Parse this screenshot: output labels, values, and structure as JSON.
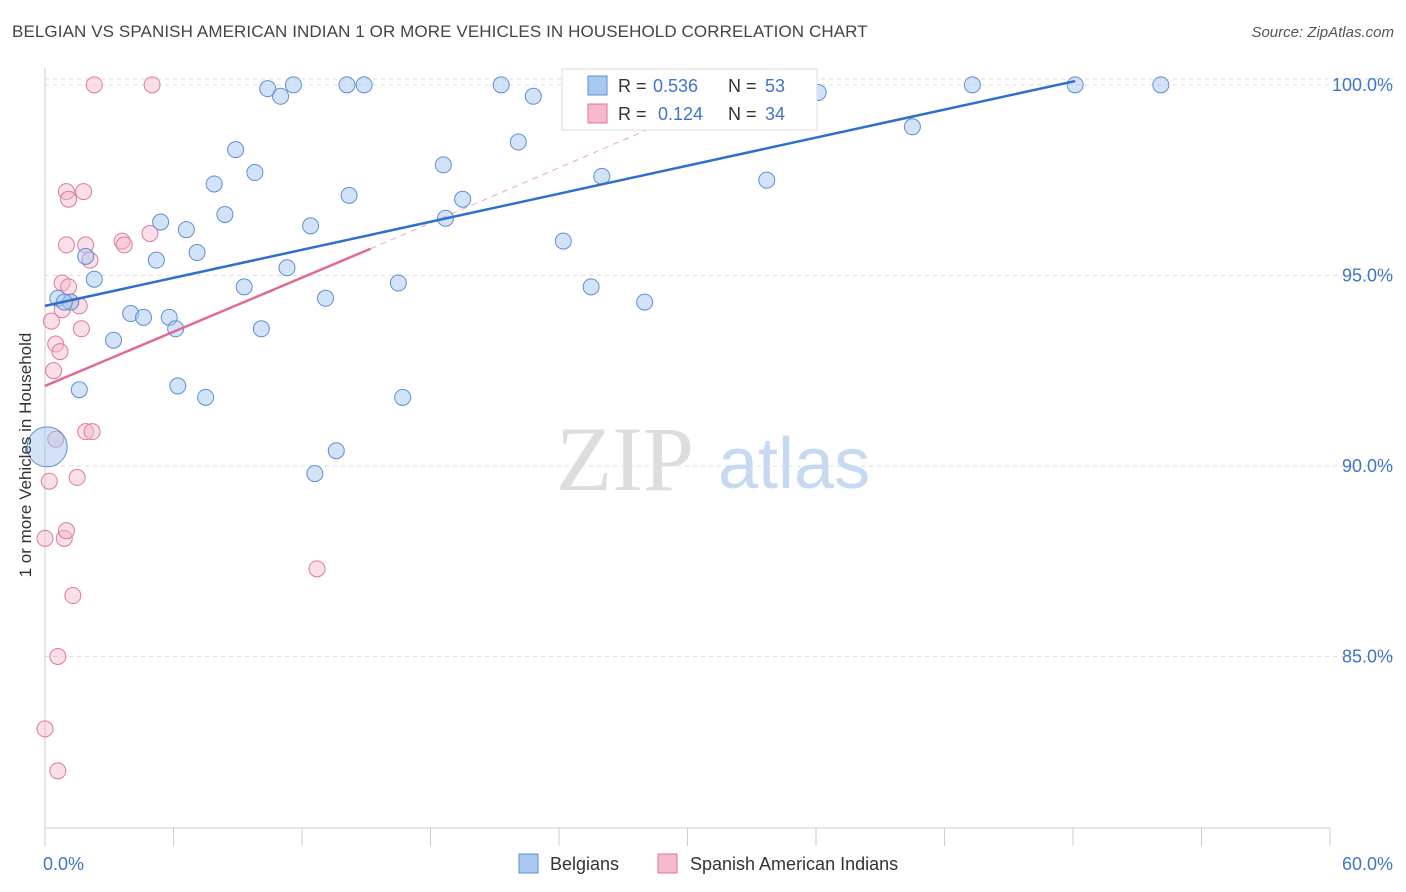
{
  "header": {
    "title": "BELGIAN VS SPANISH AMERICAN INDIAN 1 OR MORE VEHICLES IN HOUSEHOLD CORRELATION CHART",
    "source": "Source: ZipAtlas.com"
  },
  "watermark": {
    "zip": "ZIP",
    "atlas": "atlas"
  },
  "colors": {
    "belgians_fill": "#a8c8ef",
    "belgians_stroke": "#5b8fd4",
    "belgians_line": "#2f6fcc",
    "spanish_fill": "#f5b8cc",
    "spanish_stroke": "#e07899",
    "spanish_line": "#e06a92",
    "tick_label": "#3f75c8",
    "grid": "#dddddd"
  },
  "legend_top": {
    "rows": [
      {
        "r_label": "R =",
        "r_value": "0.536",
        "n_label": "N =",
        "n_value": "53"
      },
      {
        "r_label": "R =",
        "r_value": "0.124",
        "n_label": "N =",
        "n_value": "34"
      }
    ]
  },
  "chart_data": {
    "type": "scatter",
    "title": "BELGIAN VS SPANISH AMERICAN INDIAN 1 OR MORE VEHICLES IN HOUSEHOLD CORRELATION CHART",
    "xlabel": "",
    "ylabel": "1 or more Vehicles in Household",
    "xlim": [
      0,
      60
    ],
    "ylim": [
      80.5,
      100.6
    ],
    "x_tick_labels": [
      "0.0%",
      "60.0%"
    ],
    "y_ticks": [
      85,
      90,
      95,
      100
    ],
    "y_tick_labels": [
      "85.0%",
      "90.0%",
      "95.0%",
      "100.0%"
    ],
    "grid": true,
    "legend_position": "bottom",
    "series": [
      {
        "name": "Belgians",
        "r": 0.536,
        "n": 53,
        "trend": {
          "x": [
            0,
            48.1
          ],
          "y": [
            94.2,
            100.1
          ]
        },
        "points": [
          [
            0.1,
            90.5
          ],
          [
            0.6,
            94.4
          ],
          [
            1.2,
            94.3
          ],
          [
            1.6,
            92.0
          ],
          [
            1.9,
            95.5
          ],
          [
            2.3,
            94.9
          ],
          [
            3.2,
            93.3
          ],
          [
            4.0,
            94.0
          ],
          [
            4.6,
            93.9
          ],
          [
            5.2,
            95.4
          ],
          [
            5.4,
            96.4
          ],
          [
            5.8,
            93.9
          ],
          [
            6.1,
            93.6
          ],
          [
            6.2,
            92.1
          ],
          [
            6.6,
            96.2
          ],
          [
            7.1,
            95.6
          ],
          [
            7.5,
            91.8
          ],
          [
            7.9,
            97.4
          ],
          [
            8.4,
            96.6
          ],
          [
            8.9,
            98.3
          ],
          [
            9.3,
            94.7
          ],
          [
            9.8,
            97.7
          ],
          [
            10.1,
            93.6
          ],
          [
            10.4,
            99.9
          ],
          [
            11.0,
            99.7
          ],
          [
            11.3,
            95.2
          ],
          [
            11.6,
            100.0
          ],
          [
            12.4,
            96.3
          ],
          [
            12.6,
            89.8
          ],
          [
            13.1,
            94.4
          ],
          [
            13.6,
            90.4
          ],
          [
            14.1,
            100.0
          ],
          [
            14.2,
            97.1
          ],
          [
            14.9,
            100.0
          ],
          [
            16.5,
            94.8
          ],
          [
            16.7,
            91.8
          ],
          [
            18.6,
            97.9
          ],
          [
            18.7,
            96.5
          ],
          [
            19.5,
            97.0
          ],
          [
            21.3,
            100.0
          ],
          [
            22.1,
            98.5
          ],
          [
            22.8,
            99.7
          ],
          [
            24.2,
            95.9
          ],
          [
            25.5,
            94.7
          ],
          [
            26.0,
            97.6
          ],
          [
            28.0,
            94.3
          ],
          [
            33.7,
            97.5
          ],
          [
            36.1,
            99.8
          ],
          [
            40.5,
            98.9
          ],
          [
            43.3,
            100.0
          ],
          [
            48.1,
            100.0
          ],
          [
            52.1,
            100.0
          ],
          [
            0.9,
            94.3
          ]
        ]
      },
      {
        "name": "Spanish American Indians",
        "r": 0.124,
        "n": 34,
        "trend": {
          "x": [
            0,
            15.2
          ],
          "y": [
            92.1,
            95.7
          ],
          "dashed_x": [
            15.2,
            33.0
          ],
          "dashed_y": [
            95.7,
            100.0
          ]
        },
        "points": [
          [
            0.0,
            88.1
          ],
          [
            0.0,
            83.1
          ],
          [
            0.2,
            89.6
          ],
          [
            0.3,
            93.8
          ],
          [
            0.4,
            92.5
          ],
          [
            0.5,
            93.2
          ],
          [
            0.5,
            90.7
          ],
          [
            0.6,
            82.0
          ],
          [
            0.6,
            85.0
          ],
          [
            0.7,
            93.0
          ],
          [
            0.8,
            94.1
          ],
          [
            0.8,
            94.8
          ],
          [
            0.9,
            88.1
          ],
          [
            1.0,
            88.3
          ],
          [
            1.0,
            95.8
          ],
          [
            1.0,
            97.2
          ],
          [
            1.1,
            97.0
          ],
          [
            1.1,
            94.7
          ],
          [
            1.2,
            94.3
          ],
          [
            1.3,
            86.6
          ],
          [
            1.5,
            89.7
          ],
          [
            1.6,
            94.2
          ],
          [
            1.7,
            93.6
          ],
          [
            1.8,
            97.2
          ],
          [
            1.9,
            95.8
          ],
          [
            1.9,
            90.9
          ],
          [
            2.1,
            95.4
          ],
          [
            2.2,
            90.9
          ],
          [
            2.3,
            100.0
          ],
          [
            3.6,
            95.9
          ],
          [
            3.7,
            95.8
          ],
          [
            4.9,
            96.1
          ],
          [
            5.0,
            100.0
          ],
          [
            12.7,
            87.3
          ]
        ]
      }
    ]
  }
}
